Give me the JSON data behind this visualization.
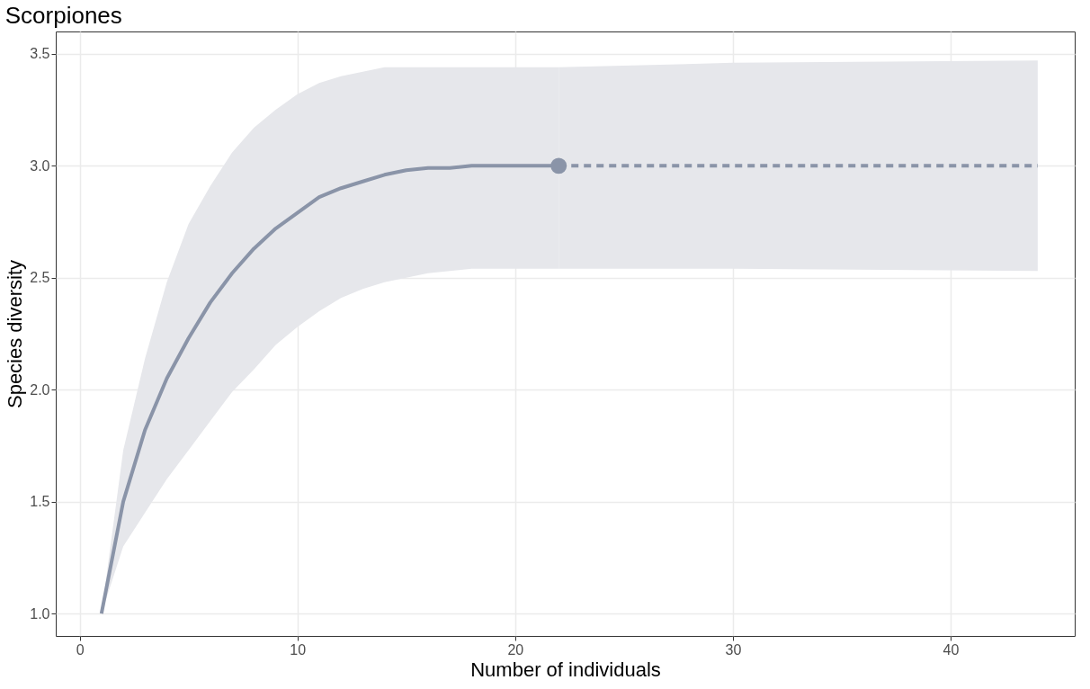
{
  "chart_data": {
    "type": "line",
    "title": "Scorpiones",
    "xlabel": "Number of individuals",
    "ylabel": "Species diversity",
    "xlim": [
      -1.1,
      45.7
    ],
    "xticks": [
      0,
      10,
      20,
      30,
      40
    ],
    "ylim": [
      0.9,
      3.6
    ],
    "yticks": [
      {
        "value": 1,
        "label": "1.0"
      },
      {
        "value": 1.5,
        "label": "1.5"
      },
      {
        "value": 2,
        "label": "2.0"
      },
      {
        "value": 2.5,
        "label": "2.5"
      },
      {
        "value": 3,
        "label": "3.0"
      },
      {
        "value": 3.5,
        "label": "3.5"
      }
    ],
    "grid": true,
    "series": [
      {
        "line_style": "solid",
        "color": "#8a94a8",
        "x": [
          1,
          2,
          3,
          4,
          5,
          6,
          7,
          8,
          9,
          10,
          11,
          12,
          13,
          14,
          15,
          16,
          17,
          18,
          20,
          22
        ],
        "values": [
          1.0,
          1.5,
          1.82,
          2.05,
          2.23,
          2.39,
          2.52,
          2.63,
          2.72,
          2.79,
          2.86,
          2.9,
          2.93,
          2.96,
          2.98,
          2.99,
          2.99,
          3.0,
          3.0,
          3.0
        ],
        "lower": [
          1.0,
          1.3,
          1.45,
          1.6,
          1.73,
          1.86,
          1.99,
          2.09,
          2.2,
          2.28,
          2.35,
          2.41,
          2.45,
          2.48,
          2.5,
          2.52,
          2.53,
          2.54,
          2.54,
          2.54
        ],
        "upper": [
          1.0,
          1.73,
          2.14,
          2.48,
          2.74,
          2.91,
          3.06,
          3.17,
          3.25,
          3.32,
          3.37,
          3.4,
          3.42,
          3.44,
          3.44,
          3.44,
          3.44,
          3.44,
          3.44,
          3.44
        ]
      },
      {
        "line_style": "dashed",
        "color": "#8a94a8",
        "x": [
          22,
          30,
          44
        ],
        "values": [
          3.0,
          3.0,
          3.0
        ],
        "lower": [
          2.54,
          2.54,
          2.53
        ],
        "upper": [
          3.44,
          3.46,
          3.47
        ]
      },
      {
        "type": "scatter",
        "marker": "circle",
        "color": "#8a94a8",
        "x": [
          22
        ],
        "values": [
          3.0
        ]
      }
    ]
  }
}
